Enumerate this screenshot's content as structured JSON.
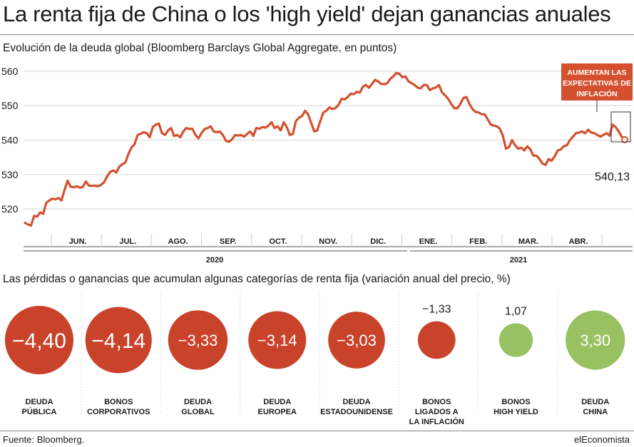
{
  "title": "La renta fija de China o los 'high yield' dejan ganancias anuales",
  "source": "Fuente: Bloomberg.",
  "brand": "elEconomista",
  "colors": {
    "line": "#d4502f",
    "negative": "#c9432b",
    "positive": "#98c161",
    "callout_bg": "#d4502f"
  },
  "chart_data": [
    {
      "type": "line",
      "subtitle": "Evolución de la deuda global (Bloomberg Barclays Global Aggregate, en puntos)",
      "ylim": [
        513,
        561
      ],
      "yticks": [
        520,
        530,
        540,
        550,
        560
      ],
      "grid": true,
      "months": [
        "JUN.",
        "JUL.",
        "AGO.",
        "SEP.",
        "OCT.",
        "NOV.",
        "DIC.",
        "ENE.",
        "FEB.",
        "MAR.",
        "ABR."
      ],
      "years": [
        "2020",
        "2021"
      ],
      "callout": "AUMENTAN LAS EXPECTATIVAS DE INFLACIÓN",
      "last_value_label": "540,13",
      "series": [
        {
          "values": [
            516,
            515.5,
            515.2,
            518,
            517.8,
            519,
            518.6,
            521.8,
            522.5,
            523,
            522.8,
            523.2,
            522.5,
            525.5,
            528.2,
            526.5,
            526.3,
            526.6,
            526.2,
            526.4,
            528,
            526.8,
            526.7,
            526.8,
            526.6,
            527,
            527.8,
            529.5,
            530.8,
            531.2,
            530.6,
            532.3,
            533,
            533.5,
            536,
            537.8,
            538.8,
            541.5,
            541.8,
            542.3,
            542,
            540.8,
            543.8,
            544.5,
            544.8,
            542,
            541.5,
            542.8,
            543.5,
            541.2,
            541.5,
            540.8,
            542.5,
            543.5,
            543.2,
            543.3,
            541.5,
            540.5,
            542,
            543.2,
            543.5,
            544,
            542.5,
            542.3,
            542.5,
            541.5,
            539.8,
            539.5,
            540.2,
            541.5,
            541.3,
            541.5,
            541,
            541.8,
            542.5,
            541.2,
            543.5,
            543.3,
            543.8,
            543.6,
            544.2,
            545.2,
            543.5,
            544,
            542.8,
            545.2,
            543.8,
            541.5,
            541.8,
            545.5,
            546.5,
            547,
            548.5,
            547.5,
            545,
            542.5,
            542.8,
            545.5,
            548,
            548.5,
            549.5,
            549,
            549.3,
            550.2,
            552,
            551.8,
            552.5,
            553.5,
            553.3,
            554,
            553.8,
            555.5,
            556,
            555.2,
            556.3,
            557.5,
            557,
            556.3,
            556.2,
            556.5,
            557.8,
            558.5,
            559.5,
            559.2,
            558.2,
            558.5,
            557,
            556.5,
            556,
            555.2,
            555,
            556,
            556,
            554.5,
            555,
            555.3,
            556,
            553.8,
            553,
            552,
            550.5,
            549.3,
            549.2,
            550.5,
            552.2,
            552.5,
            550.5,
            549,
            548.2,
            548,
            547.5,
            547.5,
            546,
            544.5,
            544.2,
            544,
            543.3,
            541.2,
            537.5,
            538,
            540,
            538.5,
            537.5,
            537.8,
            537,
            538.2,
            537.3,
            535.5,
            535.5,
            534.5,
            533.2,
            532.8,
            534.5,
            534,
            535.3,
            537,
            537.3,
            538.2,
            538.5,
            540,
            541,
            542,
            542.2,
            542.5,
            542,
            543,
            542.2,
            542,
            541.5,
            541,
            541.5,
            542,
            541.3,
            544.5,
            543.8,
            542.5,
            541,
            540.13
          ]
        }
      ]
    },
    {
      "type": "bubble",
      "subtitle": "Las pérdidas o ganancias que acumulan algunas categorías de renta fija (variación anual del precio, %)",
      "categories": [
        {
          "label": [
            "DEUDA",
            "PÚBLICA"
          ],
          "value": -4.4,
          "value_label": "−4,40"
        },
        {
          "label": [
            "BONOS",
            "CORPORATIVOS"
          ],
          "value": -4.14,
          "value_label": "−4,14"
        },
        {
          "label": [
            "DEUDA",
            "GLOBAL"
          ],
          "value": -3.33,
          "value_label": "−3,33"
        },
        {
          "label": [
            "DEUDA",
            "EUROPEA"
          ],
          "value": -3.14,
          "value_label": "−3,14"
        },
        {
          "label": [
            "DEUDA",
            "ESTADOUNIDENSE"
          ],
          "value": -3.03,
          "value_label": "−3,03"
        },
        {
          "label": [
            "BONOS",
            "LIGADOS A",
            "LA INFLACIÓN"
          ],
          "value": -1.33,
          "value_label": "−1,33"
        },
        {
          "label": [
            "BONOS",
            "HIGH YIELD"
          ],
          "value": 1.07,
          "value_label": "1,07"
        },
        {
          "label": [
            "DEUDA",
            "CHINA"
          ],
          "value": 3.3,
          "value_label": "3,30"
        }
      ]
    }
  ]
}
